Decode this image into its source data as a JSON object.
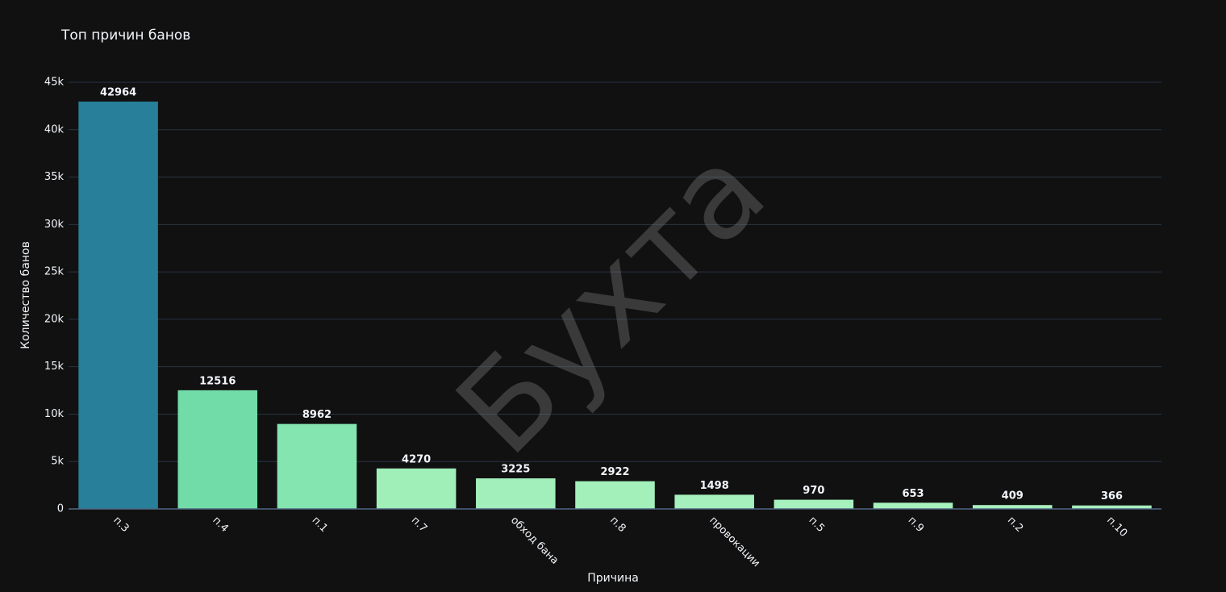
{
  "chart_data": {
    "type": "bar",
    "title": "Топ причин банов",
    "watermark": "Бухта",
    "x_label": "Причина",
    "y_label": "Количество банов",
    "categories": [
      "п.3",
      "п.4",
      "п.1",
      "п.7",
      "обход бана",
      "п.8",
      "провокации",
      "п.5",
      "п.9",
      "п.2",
      "п.10"
    ],
    "values": [
      42964,
      12516,
      8962,
      4270,
      3225,
      2922,
      1498,
      970,
      653,
      409,
      366
    ],
    "colors": [
      "#277f99",
      "#72dca8",
      "#84e5b0",
      "#a0efb9",
      "#a2efbb",
      "#a3f0bb",
      "#a5f0bc",
      "#a6f1bd",
      "#a7f1bd",
      "#a8f1be",
      "#a8f1be"
    ],
    "ylim": [
      0,
      45000
    ],
    "yticks": [
      0,
      {
        "value": 5000,
        "label": "5k"
      },
      {
        "value": 10000,
        "label": "10k"
      },
      {
        "value": 15000,
        "label": "15k"
      },
      {
        "value": 20000,
        "label": "20k"
      },
      {
        "value": 25000,
        "label": "25k"
      },
      {
        "value": 30000,
        "label": "30k"
      },
      {
        "value": 35000,
        "label": "35k"
      },
      {
        "value": 40000,
        "label": "40k"
      },
      {
        "value": 45000,
        "label": "45k"
      }
    ],
    "grid": true
  }
}
